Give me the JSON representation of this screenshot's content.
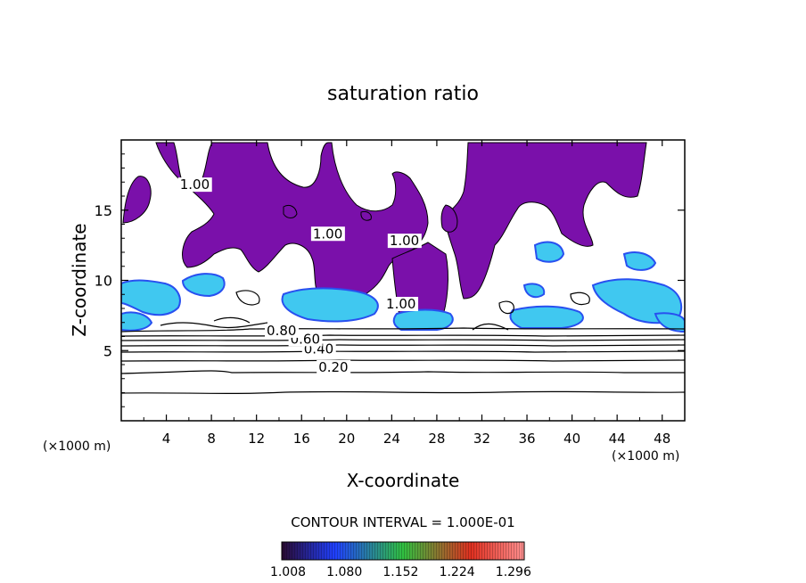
{
  "chart_data": {
    "type": "heatmap",
    "title": "saturation ratio",
    "xlabel": "X-coordinate",
    "ylabel": "Z-coordinate",
    "x_unit_label": "(×1000 m)",
    "z_unit_label": "(×1000 m)",
    "xlim": [
      0,
      50
    ],
    "ylim": [
      0,
      20
    ],
    "x_ticks": [
      4,
      8,
      12,
      16,
      20,
      24,
      28,
      32,
      36,
      40,
      44,
      48
    ],
    "y_ticks": [
      5,
      10,
      15
    ],
    "grid": false,
    "contour_interval_text": "CONTOUR INTERVAL = 1.000E-01",
    "colorbar": {
      "ticks": [
        "1.008",
        "1.080",
        "1.152",
        "1.224",
        "1.296"
      ],
      "colors": [
        "#2a0a30",
        "#2040ff",
        "#30c040",
        "#e03020",
        "#ff9090"
      ]
    },
    "contour_labels": [
      {
        "text": "0.20",
        "x": 17.5,
        "y": 3.5
      },
      {
        "text": "0.40",
        "x": 16.2,
        "y": 4.8
      },
      {
        "text": "0.60",
        "x": 15.0,
        "y": 5.5
      },
      {
        "text": "0.80",
        "x": 12.9,
        "y": 6.1
      },
      {
        "text": "1.00",
        "x": 5.2,
        "y": 16.5
      },
      {
        "text": "1.00",
        "x": 17.0,
        "y": 13.0
      },
      {
        "text": "1.00",
        "x": 23.8,
        "y": 12.5
      },
      {
        "text": "1.00",
        "x": 23.5,
        "y": 8.0
      }
    ],
    "colors": {
      "supersaturated": "#7a10aa",
      "light_blue": "#40c8f0",
      "blue": "#2850f0",
      "contour_line": "#000000"
    }
  }
}
